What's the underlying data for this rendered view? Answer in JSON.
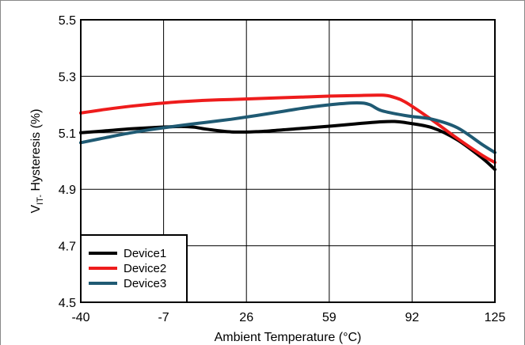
{
  "chart_data": {
    "type": "line",
    "xlabel": "Ambient Temperature (°C)",
    "ylabel": {
      "main": "V",
      "sub": "IT-",
      "rest": " Hysteresis (%)"
    },
    "x_ticks": [
      "-40",
      "-7",
      "26",
      "59",
      "92",
      "125"
    ],
    "y_ticks": [
      "4.5",
      "4.7",
      "4.9",
      "5.1",
      "5.3",
      "5.5"
    ],
    "xlim": [
      -40,
      125
    ],
    "ylim": [
      4.5,
      5.5
    ],
    "grid": true,
    "legend_position": "bottom-left",
    "series": [
      {
        "name": "Device1",
        "color": "#000000",
        "x": [
          -40,
          -30,
          -20,
          -10,
          0,
          5,
          10,
          20,
          30,
          40,
          50,
          60,
          70,
          80,
          85,
          90,
          100,
          110,
          120,
          125
        ],
        "y": [
          5.1,
          5.107,
          5.114,
          5.119,
          5.122,
          5.12,
          5.113,
          5.103,
          5.104,
          5.11,
          5.117,
          5.124,
          5.132,
          5.139,
          5.14,
          5.135,
          5.118,
          5.075,
          5.01,
          4.97
        ]
      },
      {
        "name": "Device2",
        "color": "#ee1c1c",
        "x": [
          -40,
          -30,
          -20,
          -10,
          0,
          10,
          20,
          30,
          40,
          50,
          60,
          70,
          80,
          85,
          90,
          100,
          110,
          120,
          125
        ],
        "y": [
          5.17,
          5.183,
          5.194,
          5.203,
          5.21,
          5.215,
          5.218,
          5.221,
          5.224,
          5.227,
          5.23,
          5.232,
          5.233,
          5.225,
          5.205,
          5.145,
          5.08,
          5.02,
          4.995
        ]
      },
      {
        "name": "Device3",
        "color": "#1f5a73",
        "x": [
          -40,
          -30,
          -20,
          -10,
          0,
          10,
          20,
          30,
          40,
          50,
          60,
          70,
          75,
          80,
          90,
          100,
          110,
          120,
          125
        ],
        "y": [
          5.065,
          5.083,
          5.1,
          5.114,
          5.126,
          5.137,
          5.148,
          5.161,
          5.175,
          5.189,
          5.2,
          5.206,
          5.2,
          5.178,
          5.16,
          5.148,
          5.118,
          5.058,
          5.03
        ]
      }
    ]
  }
}
